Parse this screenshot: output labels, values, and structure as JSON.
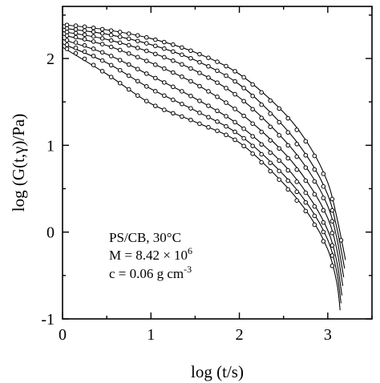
{
  "chart_data": {
    "type": "line",
    "title": "",
    "xlabel": "log (t/s)",
    "ylabel": "log (G(t,γ)/Pa)",
    "xlim": [
      0,
      3.5
    ],
    "ylim": [
      -1,
      2.6
    ],
    "x_ticks": [
      "0",
      "1",
      "2",
      "3"
    ],
    "y_ticks": [
      "-1",
      "0",
      "1",
      "2"
    ],
    "grid": false,
    "legend": "none",
    "annotations": {
      "line1": "PS/CB, 30°C",
      "line2_prefix": "M = 8.42 × 10",
      "line2_sup": "6",
      "line3_prefix": "c = 0.06 g cm",
      "line3_sup": "-3"
    },
    "series": [
      {
        "x": [
          0,
          0.5,
          1.0,
          1.5,
          2.0,
          2.5,
          2.8,
          3.0,
          3.1,
          3.2
        ],
        "y": [
          2.39,
          2.33,
          2.23,
          2.07,
          1.82,
          1.38,
          0.98,
          0.57,
          0.18,
          -0.32
        ]
      },
      {
        "x": [
          0,
          0.5,
          1.0,
          1.5,
          2.0,
          2.5,
          2.8,
          3.0,
          3.1,
          3.19
        ],
        "y": [
          2.35,
          2.28,
          2.16,
          1.98,
          1.7,
          1.22,
          0.82,
          0.43,
          0.06,
          -0.42
        ]
      },
      {
        "x": [
          0,
          0.5,
          1.0,
          1.5,
          2.0,
          2.5,
          2.8,
          3.0,
          3.1,
          3.18
        ],
        "y": [
          2.31,
          2.22,
          2.07,
          1.86,
          1.55,
          1.07,
          0.68,
          0.3,
          -0.06,
          -0.52
        ]
      },
      {
        "x": [
          0,
          0.5,
          1.0,
          1.5,
          2.0,
          2.5,
          2.8,
          3.0,
          3.1,
          3.17
        ],
        "y": [
          2.27,
          2.15,
          1.95,
          1.71,
          1.38,
          0.92,
          0.53,
          0.16,
          -0.19,
          -0.62
        ]
      },
      {
        "x": [
          0,
          0.5,
          1.0,
          1.5,
          2.0,
          2.5,
          2.8,
          3.0,
          3.1,
          3.16
        ],
        "y": [
          2.22,
          2.05,
          1.8,
          1.54,
          1.23,
          0.78,
          0.39,
          0.02,
          -0.33,
          -0.73
        ]
      },
      {
        "x": [
          0,
          0.5,
          1.0,
          1.5,
          2.0,
          2.5,
          2.8,
          3.0,
          3.1,
          3.15
        ],
        "y": [
          2.17,
          1.95,
          1.65,
          1.4,
          1.12,
          0.66,
          0.28,
          -0.09,
          -0.45,
          -0.82
        ]
      },
      {
        "x": [
          0,
          0.5,
          1.0,
          1.5,
          2.0,
          2.5,
          2.8,
          3.0,
          3.1,
          3.14
        ],
        "y": [
          2.13,
          1.82,
          1.48,
          1.27,
          1.03,
          0.56,
          0.18,
          -0.2,
          -0.57,
          -0.9
        ]
      }
    ]
  }
}
